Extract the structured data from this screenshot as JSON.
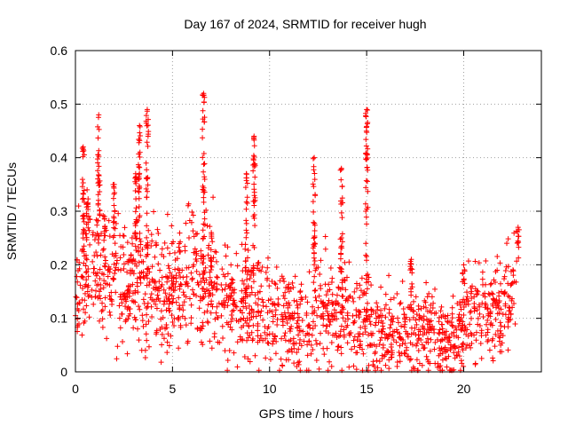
{
  "chart_data": {
    "type": "scatter",
    "title": "Day 167 of 2024, SRMTID for receiver hugh",
    "xlabel": "GPS time / hours",
    "ylabel": "SRMTID / TECUs",
    "xlim": [
      0,
      24
    ],
    "ylim": [
      0,
      0.6
    ],
    "x_ticks": [
      0,
      5,
      10,
      15,
      20
    ],
    "x_tick_labels": [
      "0",
      "5",
      "10",
      "15",
      "20"
    ],
    "y_ticks": [
      0,
      0.1,
      0.2,
      0.3,
      0.4,
      0.5,
      0.6
    ],
    "y_tick_labels": [
      "0",
      "0.1",
      "0.2",
      "0.3",
      "0.4",
      "0.5",
      "0.6"
    ],
    "grid": true,
    "marker": "+",
    "marker_color": "#ff0000",
    "series": [
      {
        "name": "SRMTID",
        "note": "approximate envelope of ~2000 plus-marker samples; dense cloud reproduced procedurally around this baseline",
        "baseline_x": [
          0,
          0.5,
          1,
          1.5,
          2,
          2.5,
          3,
          3.5,
          4,
          4.5,
          5,
          5.5,
          6,
          6.5,
          7,
          7.5,
          8,
          8.5,
          9,
          9.5,
          10,
          10.5,
          11,
          11.5,
          12,
          12.5,
          13,
          13.5,
          14,
          14.5,
          15,
          15.5,
          16,
          16.5,
          17,
          17.5,
          18,
          18.5,
          19,
          19.5,
          20,
          20.5,
          21,
          21.5,
          22,
          22.5,
          22.8
        ],
        "baseline_y": [
          0.15,
          0.18,
          0.19,
          0.17,
          0.16,
          0.16,
          0.17,
          0.16,
          0.15,
          0.15,
          0.15,
          0.16,
          0.17,
          0.17,
          0.15,
          0.12,
          0.12,
          0.12,
          0.13,
          0.12,
          0.1,
          0.09,
          0.09,
          0.08,
          0.09,
          0.11,
          0.1,
          0.11,
          0.1,
          0.09,
          0.08,
          0.08,
          0.08,
          0.07,
          0.07,
          0.07,
          0.08,
          0.07,
          0.06,
          0.06,
          0.08,
          0.1,
          0.11,
          0.1,
          0.11,
          0.13,
          0.19
        ],
        "spikes": [
          {
            "x": 0.4,
            "y": 0.42
          },
          {
            "x": 0.6,
            "y": 0.34
          },
          {
            "x": 1.2,
            "y": 0.48
          },
          {
            "x": 1.5,
            "y": 0.29
          },
          {
            "x": 2.0,
            "y": 0.35
          },
          {
            "x": 3.1,
            "y": 0.37
          },
          {
            "x": 3.3,
            "y": 0.46
          },
          {
            "x": 3.7,
            "y": 0.49
          },
          {
            "x": 6.6,
            "y": 0.52
          },
          {
            "x": 7.0,
            "y": 0.26
          },
          {
            "x": 8.8,
            "y": 0.37
          },
          {
            "x": 9.2,
            "y": 0.44
          },
          {
            "x": 12.3,
            "y": 0.4
          },
          {
            "x": 13.7,
            "y": 0.38
          },
          {
            "x": 15.0,
            "y": 0.49
          },
          {
            "x": 17.3,
            "y": 0.21
          },
          {
            "x": 20.0,
            "y": 0.2
          },
          {
            "x": 22.8,
            "y": 0.27
          }
        ]
      }
    ]
  }
}
